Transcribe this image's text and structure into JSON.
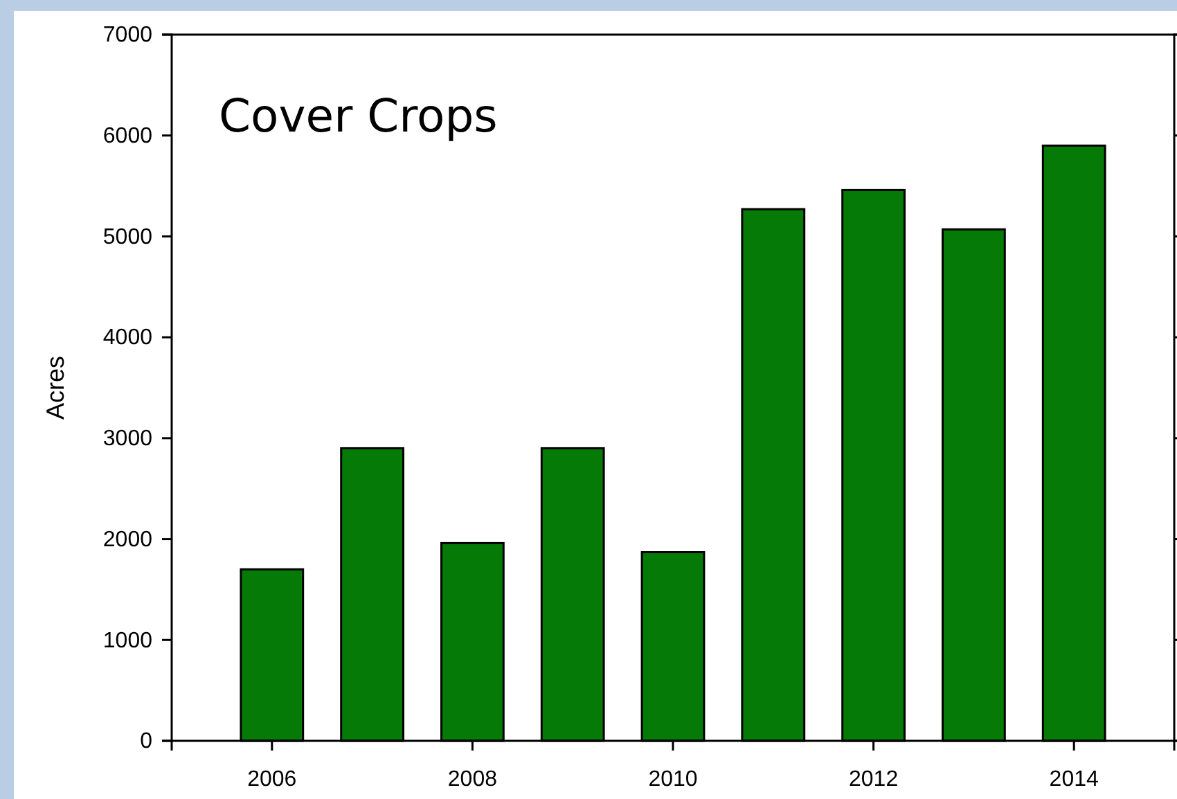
{
  "chart_data": {
    "type": "bar",
    "title": "Cover Crops",
    "ylabel": "Acres",
    "x": [
      2006,
      2007,
      2008,
      2009,
      2010,
      2011,
      2012,
      2013,
      2014
    ],
    "values": [
      1700,
      2900,
      1960,
      2900,
      1870,
      5270,
      5460,
      5070,
      5900
    ],
    "color": "#067a06",
    "xlim": [
      2005,
      2015
    ],
    "xticks": [
      2006,
      2008,
      2010,
      2012,
      2014
    ],
    "ylim": [
      0,
      7000
    ],
    "yticks": [
      0,
      1000,
      2000,
      3000,
      4000,
      5000,
      6000,
      7000
    ],
    "grid": false
  }
}
